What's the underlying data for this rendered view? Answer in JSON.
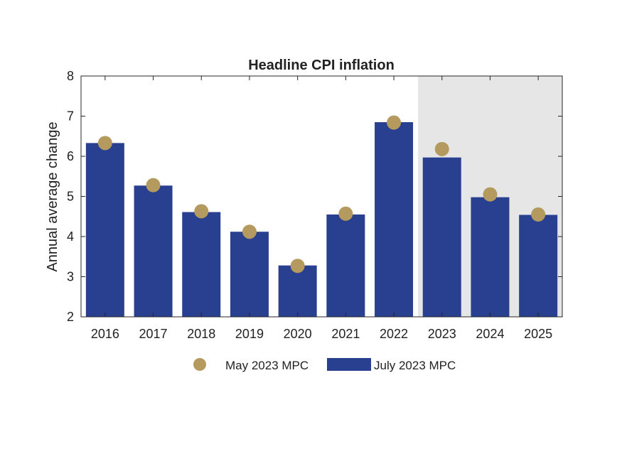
{
  "chart_data": {
    "type": "bar",
    "title": "Headline CPI inflation",
    "xlabel": "",
    "ylabel": "Annual average change",
    "ylim": [
      2,
      8
    ],
    "yticks": [
      "2",
      "3",
      "4",
      "5",
      "6",
      "7",
      "8"
    ],
    "categories": [
      "2016",
      "2017",
      "2018",
      "2019",
      "2020",
      "2021",
      "2022",
      "2023",
      "2024",
      "2025"
    ],
    "forecast_shaded_from": "2023",
    "series": [
      {
        "name": "July 2023 MPC",
        "kind": "bar",
        "color": "#28408f",
        "values": [
          6.33,
          5.27,
          4.61,
          4.12,
          3.28,
          4.55,
          6.85,
          5.97,
          4.98,
          4.54
        ]
      },
      {
        "name": "May 2023 MPC",
        "kind": "marker",
        "color": "#b49a5e",
        "values": [
          6.33,
          5.28,
          4.63,
          4.12,
          3.27,
          4.57,
          6.84,
          6.18,
          5.05,
          4.55
        ]
      }
    ],
    "grid": false,
    "legend_position": "bottom",
    "shading_color": "#e6e6e6"
  }
}
